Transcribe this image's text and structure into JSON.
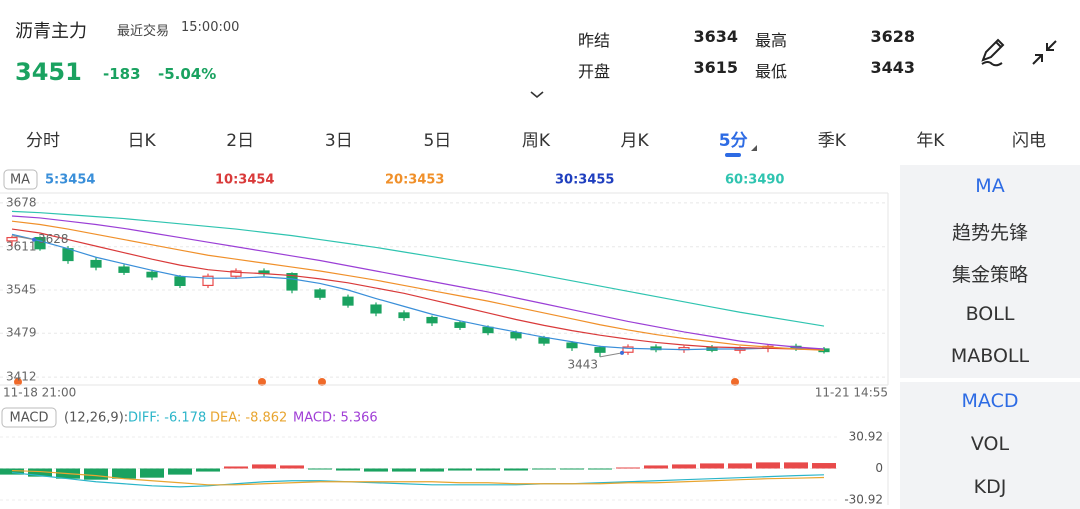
{
  "header": {
    "title": "沥青主力",
    "trade_label": "最近交易",
    "trade_time": "15:00:00",
    "price": "3451",
    "change": "-183",
    "change_pct": "-5.04%"
  },
  "stats": [
    {
      "label": "昨结",
      "value": "3634"
    },
    {
      "label": "最高",
      "value": "3628"
    },
    {
      "label": "开盘",
      "value": "3615"
    },
    {
      "label": "最低",
      "value": "3443"
    }
  ],
  "tabs": {
    "items": [
      "分时",
      "日K",
      "2日",
      "3日",
      "5日",
      "周K",
      "月K",
      "5分",
      "季K",
      "年K",
      "闪电"
    ],
    "active": 7
  },
  "side_menu": {
    "main": [
      "MA",
      "趋势先锋",
      "集金策略",
      "BOLL",
      "MABOLL"
    ],
    "sub": [
      "MACD",
      "VOL",
      "KDJ"
    ],
    "active_main": 0,
    "active_sub": 0
  },
  "chart_data": [
    {
      "type": "candlestick",
      "indicator": "MA",
      "categories": [
        "11-18 21:00",
        null,
        null,
        null,
        null,
        null,
        null,
        null,
        null,
        null,
        null,
        null,
        null,
        null,
        null,
        null,
        null,
        null,
        null,
        null,
        null,
        null,
        null,
        null,
        null,
        null,
        null,
        null,
        null,
        "11-21 14:55"
      ],
      "open": [
        3620,
        3625,
        3608,
        3590,
        3580,
        3572,
        3565,
        3552,
        3566,
        3574,
        3570,
        3545,
        3534,
        3522,
        3510,
        3503,
        3495,
        3488,
        3480,
        3472,
        3464,
        3457,
        3450,
        3458,
        3454,
        3457,
        3453,
        3456,
        3459,
        3455
      ],
      "high": [
        3628,
        3627,
        3612,
        3595,
        3584,
        3576,
        3568,
        3570,
        3578,
        3578,
        3572,
        3548,
        3538,
        3526,
        3514,
        3506,
        3498,
        3491,
        3483,
        3475,
        3467,
        3460,
        3462,
        3462,
        3460,
        3461,
        3459,
        3462,
        3463,
        3458
      ],
      "low": [
        3612,
        3605,
        3585,
        3575,
        3568,
        3560,
        3548,
        3548,
        3562,
        3566,
        3540,
        3530,
        3518,
        3505,
        3498,
        3490,
        3484,
        3476,
        3468,
        3460,
        3452,
        3443,
        3446,
        3450,
        3449,
        3450,
        3448,
        3450,
        3452,
        3448
      ],
      "close": [
        3625,
        3608,
        3590,
        3580,
        3572,
        3565,
        3552,
        3566,
        3574,
        3570,
        3545,
        3534,
        3522,
        3510,
        3503,
        3495,
        3488,
        3480,
        3472,
        3464,
        3457,
        3450,
        3458,
        3454,
        3457,
        3453,
        3456,
        3459,
        3455,
        3451
      ],
      "up_color": "#e84a4a",
      "down_color": "#1aa260",
      "series": [
        {
          "name": "5:3454",
          "color": "#3a8fd9",
          "values": [
            3630,
            3620,
            3608,
            3595,
            3585,
            3575,
            3566,
            3563,
            3563,
            3565,
            3562,
            3555,
            3545,
            3532,
            3520,
            3508,
            3498,
            3489,
            3481,
            3473,
            3466,
            3459,
            3456,
            3455,
            3454,
            3455,
            3455,
            3456,
            3456,
            3454
          ]
        },
        {
          "name": "10:3454",
          "color": "#d93a3a",
          "values": [
            3638,
            3632,
            3622,
            3612,
            3602,
            3592,
            3583,
            3576,
            3572,
            3570,
            3567,
            3562,
            3556,
            3548,
            3540,
            3530,
            3520,
            3510,
            3500,
            3491,
            3483,
            3476,
            3470,
            3465,
            3461,
            3458,
            3457,
            3456,
            3455,
            3454
          ]
        },
        {
          "name": "20:3453",
          "color": "#f0902a",
          "values": [
            3650,
            3645,
            3638,
            3630,
            3622,
            3614,
            3606,
            3598,
            3592,
            3586,
            3580,
            3574,
            3567,
            3560,
            3552,
            3544,
            3536,
            3528,
            3519,
            3510,
            3501,
            3492,
            3484,
            3477,
            3471,
            3466,
            3461,
            3458,
            3455,
            3453
          ]
        },
        {
          "name": "30:3455",
          "color": "#1f3fbf",
          "line_color": "#9b3fd6",
          "values": [
            3658,
            3655,
            3650,
            3645,
            3639,
            3632,
            3625,
            3618,
            3611,
            3604,
            3597,
            3590,
            3582,
            3574,
            3566,
            3558,
            3550,
            3542,
            3533,
            3524,
            3515,
            3506,
            3497,
            3489,
            3481,
            3474,
            3467,
            3462,
            3458,
            3455
          ]
        },
        {
          "name": "60:3490",
          "color": "#2fc4b0",
          "values": [
            3665,
            3663,
            3660,
            3657,
            3654,
            3650,
            3646,
            3642,
            3638,
            3633,
            3628,
            3622,
            3616,
            3610,
            3603,
            3596,
            3589,
            3582,
            3575,
            3567,
            3559,
            3551,
            3543,
            3535,
            3527,
            3519,
            3511,
            3504,
            3497,
            3490
          ]
        }
      ],
      "ylim": [
        3400,
        3690
      ],
      "yticks": [
        3678,
        3611,
        3545,
        3479,
        3412
      ],
      "grid": true,
      "annotations": [
        "3628",
        "3443"
      ]
    },
    {
      "type": "macd",
      "indicator": "MACD",
      "subtitle": "(12,26,9):",
      "histogram": {
        "name": "MACD: 5.366",
        "color": "#a03ed6",
        "up_color": "#e84a4a",
        "down_color": "#1aa260",
        "values": [
          -6,
          -8,
          -10,
          -11,
          -10,
          -9,
          -6,
          -3,
          2,
          4,
          3,
          -1,
          -2,
          -3,
          -3,
          -3,
          -2,
          -2,
          -2,
          -1,
          -1,
          -1,
          1,
          3,
          4,
          5,
          5,
          6,
          6,
          5.366
        ]
      },
      "series": [
        {
          "name": "DIFF: -6.178",
          "color": "#2bb5c9",
          "values": [
            -4,
            -7,
            -10,
            -13,
            -15,
            -17,
            -18,
            -17,
            -15,
            -13,
            -12,
            -12,
            -13,
            -14,
            -15,
            -16,
            -16,
            -16,
            -16,
            -15,
            -15,
            -14,
            -13,
            -12,
            -11,
            -10,
            -9,
            -8,
            -7,
            -6.178
          ]
        },
        {
          "name": "DEA: -8.862",
          "color": "#e8a530",
          "values": [
            -2,
            -3,
            -5,
            -7,
            -10,
            -12,
            -14,
            -16,
            -16,
            -15,
            -14,
            -13,
            -13,
            -13,
            -13,
            -13,
            -14,
            -14,
            -15,
            -15,
            -15,
            -15,
            -14,
            -14,
            -13,
            -12,
            -11,
            -10,
            -9.5,
            -8.862
          ]
        }
      ],
      "ylim": [
        -30.92,
        30.92
      ],
      "yticks": [
        30.92,
        0,
        -30.92
      ]
    }
  ]
}
